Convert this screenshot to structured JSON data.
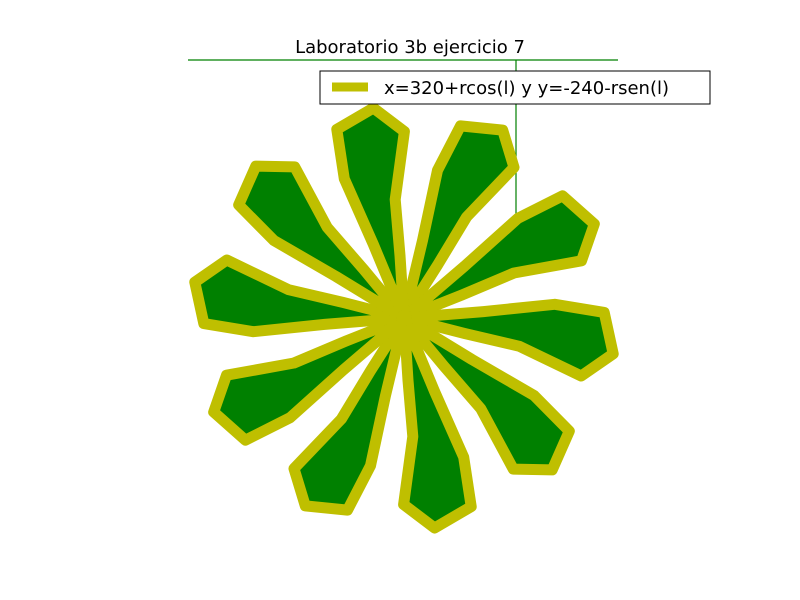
{
  "chart_data": {
    "type": "line",
    "title": "Laboratorio 3b ejercicio 7",
    "legend": {
      "placement": "top-right",
      "entries": [
        {
          "label": "x=320+rcos(l) y y=-240-rsen(l)"
        }
      ]
    },
    "axes": {
      "visible": false,
      "grid": false
    },
    "series": [
      {
        "name": "x=320+rcos(l) y y=-240-rsen(l)",
        "style": {
          "stroke": "#bfbf00",
          "fill": "#008000"
        },
        "n_petals": 10,
        "rotation_deg": 25,
        "center_dot": {
          "color": "#bfbf00"
        }
      }
    ]
  },
  "colors": {
    "petal_fill": "#008000",
    "petal_stroke": "#bfbf00",
    "axis_lines": "#008000",
    "background": "#ffffff"
  }
}
